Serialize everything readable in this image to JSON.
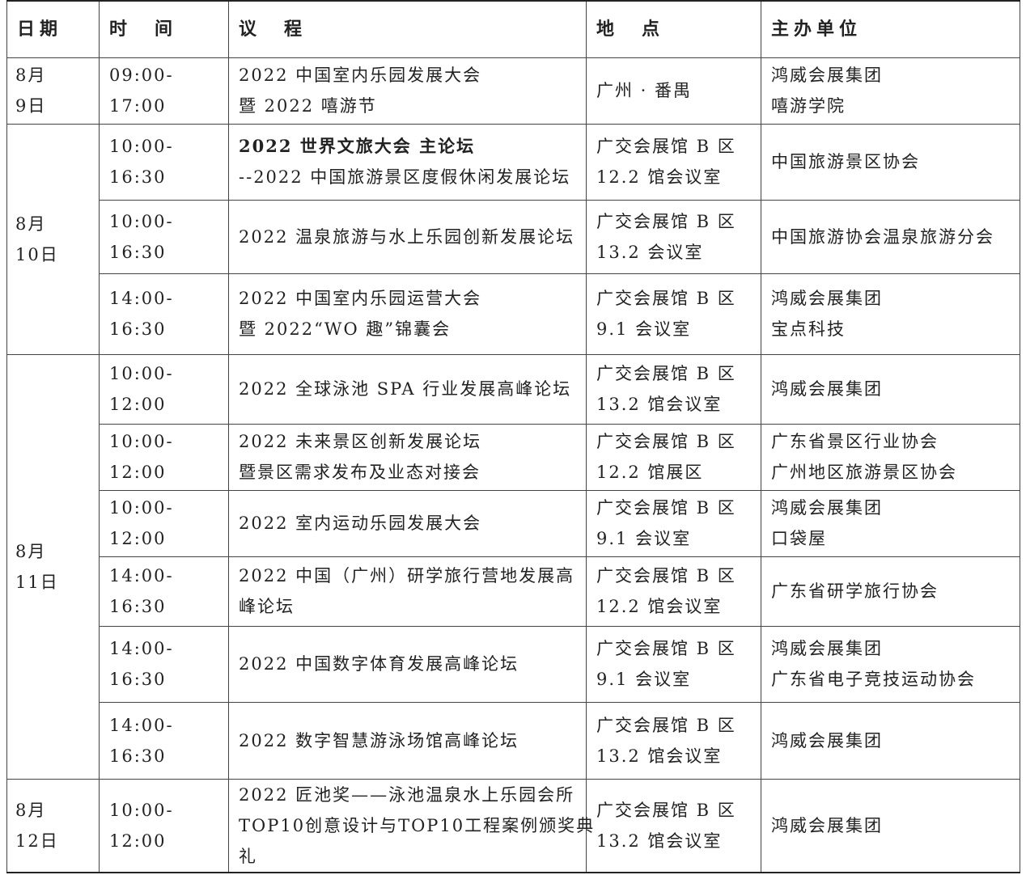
{
  "headers": {
    "date": "日期",
    "time": "时　间",
    "agenda": "议　程",
    "venue": "地　点",
    "host": "主办单位"
  },
  "days": [
    {
      "date": [
        "8月",
        "9日"
      ],
      "sessions": [
        {
          "time": "09:00-17:00",
          "agenda": [
            "2022 中国室内乐园发展大会",
            "暨 2022 嘻游节"
          ],
          "venue": [
            "广州 · 番禺"
          ],
          "host": [
            "鸿威会展集团",
            "嘻游学院"
          ]
        }
      ]
    },
    {
      "date": [
        "8月",
        "10日"
      ],
      "sessions": [
        {
          "time": "10:00-16:30",
          "agenda": [
            "2022 世界文旅大会 主论坛",
            "--2022 中国旅游景区度假休闲发展论坛"
          ],
          "agenda_bold_first": true,
          "venue": [
            "广交会展馆 B 区",
            "12.2 馆会议室"
          ],
          "host": [
            "中国旅游景区协会"
          ]
        },
        {
          "time": "10:00-16:30",
          "agenda": [
            "2022 温泉旅游与水上乐园创新发展论坛"
          ],
          "venue": [
            "广交会展馆 B 区",
            "13.2 会议室"
          ],
          "host": [
            "中国旅游协会温泉旅游分会"
          ]
        },
        {
          "time": "14:00-16:30",
          "agenda": [
            "2022 中国室内乐园运营大会",
            "暨 2022“WO 趣”锦囊会"
          ],
          "venue": [
            "广交会展馆 B 区",
            "9.1 会议室"
          ],
          "host": [
            "鸿威会展集团",
            "宝点科技"
          ]
        }
      ]
    },
    {
      "date": [
        "8月",
        "11日"
      ],
      "sessions": [
        {
          "time": "10:00-12:00",
          "agenda": [
            "2022 全球泳池 SPA 行业发展高峰论坛"
          ],
          "venue": [
            "广交会展馆 B 区",
            "13.2 馆会议室"
          ],
          "host": [
            "鸿威会展集团"
          ]
        },
        {
          "time": "10:00-12:00",
          "agenda": [
            "2022 未来景区创新发展论坛",
            "暨景区需求发布及业态对接会"
          ],
          "venue": [
            "广交会展馆 B 区",
            "12.2 馆展区"
          ],
          "host": [
            "广东省景区行业协会",
            "广州地区旅游景区协会"
          ]
        },
        {
          "time": "10:00-12:00",
          "agenda": [
            "2022 室内运动乐园发展大会"
          ],
          "venue": [
            "广交会展馆 B 区",
            "9.1 会议室"
          ],
          "host": [
            "鸿威会展集团",
            "口袋屋"
          ]
        },
        {
          "time": "14:00-16:30",
          "agenda": [
            "2022 中国（广州）研学旅行营地发展高",
            "峰论坛"
          ],
          "venue": [
            "广交会展馆 B 区",
            "12.2 馆会议室"
          ],
          "host": [
            "广东省研学旅行协会"
          ]
        },
        {
          "time": "14:00-16:30",
          "agenda": [
            "2022 中国数字体育发展高峰论坛"
          ],
          "venue": [
            "广交会展馆 B 区",
            "9.1 会议室"
          ],
          "host": [
            "鸿威会展集团",
            "广东省电子竞技运动协会"
          ]
        },
        {
          "time": "14:00-16:30",
          "agenda": [
            "2022 数字智慧游泳场馆高峰论坛"
          ],
          "venue": [
            "广交会展馆 B 区",
            "13.2 馆会议室"
          ],
          "host": [
            "鸿威会展集团"
          ]
        }
      ]
    },
    {
      "date": [
        "8月",
        "12日"
      ],
      "sessions": [
        {
          "time": "10:00-12:00",
          "agenda": [
            "2022 匠池奖——泳池温泉水上乐园会所",
            "TOP10创意设计与TOP10工程案例颁奖典",
            "礼"
          ],
          "venue": [
            "广交会展馆 B 区",
            "13.2 馆会议室"
          ],
          "host": [
            "鸿威会展集团"
          ]
        }
      ]
    }
  ]
}
